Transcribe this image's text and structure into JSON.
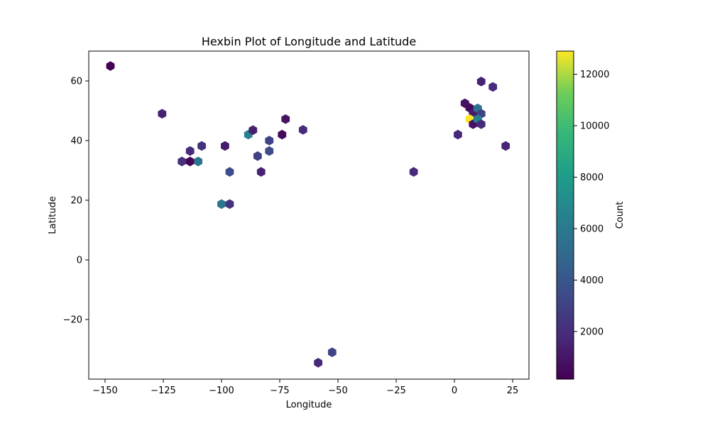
{
  "chart_data": {
    "type": "hexbin",
    "title": "Hexbin Plot of Longitude and Latitude",
    "xlabel": "Longitude",
    "ylabel": "Latitude",
    "xlim": [
      -157,
      32
    ],
    "ylim": [
      -40,
      70
    ],
    "xticks": [
      -150,
      -125,
      -100,
      -75,
      -50,
      -25,
      0,
      25
    ],
    "yticks": [
      -20,
      0,
      20,
      40,
      60
    ],
    "grid": false,
    "colormap": "viridis",
    "colorbar": {
      "label": "Count",
      "range": [
        150,
        12900
      ],
      "ticks": [
        2000,
        4000,
        6000,
        8000,
        10000,
        12000
      ]
    },
    "points": [
      {
        "x": -147.7,
        "y": 65.0,
        "count": 200
      },
      {
        "x": -125.5,
        "y": 49.0,
        "count": 1500
      },
      {
        "x": -117.0,
        "y": 33.0,
        "count": 2200
      },
      {
        "x": -113.5,
        "y": 33.0,
        "count": 300
      },
      {
        "x": -110.0,
        "y": 33.0,
        "count": 5800
      },
      {
        "x": -113.5,
        "y": 36.5,
        "count": 2000
      },
      {
        "x": -108.5,
        "y": 38.2,
        "count": 2200
      },
      {
        "x": -98.5,
        "y": 38.2,
        "count": 1200
      },
      {
        "x": -96.5,
        "y": 29.5,
        "count": 3500
      },
      {
        "x": -100.0,
        "y": 18.7,
        "count": 5800
      },
      {
        "x": -96.5,
        "y": 18.7,
        "count": 2200
      },
      {
        "x": -88.5,
        "y": 42.0,
        "count": 6500
      },
      {
        "x": -86.5,
        "y": 43.5,
        "count": 1400
      },
      {
        "x": -84.5,
        "y": 34.8,
        "count": 2900
      },
      {
        "x": -83.0,
        "y": 29.5,
        "count": 1500
      },
      {
        "x": -79.5,
        "y": 40.0,
        "count": 3000
      },
      {
        "x": -79.5,
        "y": 36.5,
        "count": 3500
      },
      {
        "x": -74.0,
        "y": 42.0,
        "count": 400
      },
      {
        "x": -72.5,
        "y": 47.2,
        "count": 900
      },
      {
        "x": -65.0,
        "y": 43.6,
        "count": 1900
      },
      {
        "x": -52.5,
        "y": -31.0,
        "count": 3100
      },
      {
        "x": -58.5,
        "y": -34.5,
        "count": 1800
      },
      {
        "x": -17.5,
        "y": 29.5,
        "count": 1900
      },
      {
        "x": 1.5,
        "y": 42.0,
        "count": 1800
      },
      {
        "x": 4.5,
        "y": 52.5,
        "count": 800
      },
      {
        "x": 6.5,
        "y": 51.0,
        "count": 600
      },
      {
        "x": 8.0,
        "y": 49.2,
        "count": 1200
      },
      {
        "x": 6.5,
        "y": 47.2,
        "count": 12900
      },
      {
        "x": 8.0,
        "y": 45.5,
        "count": 800
      },
      {
        "x": 10.0,
        "y": 50.8,
        "count": 5500
      },
      {
        "x": 11.5,
        "y": 49.0,
        "count": 3000
      },
      {
        "x": 10.0,
        "y": 47.2,
        "count": 6500
      },
      {
        "x": 11.5,
        "y": 45.5,
        "count": 2000
      },
      {
        "x": 11.5,
        "y": 59.8,
        "count": 1500
      },
      {
        "x": 16.5,
        "y": 58.0,
        "count": 2000
      },
      {
        "x": 22.0,
        "y": 38.2,
        "count": 1600
      }
    ]
  }
}
